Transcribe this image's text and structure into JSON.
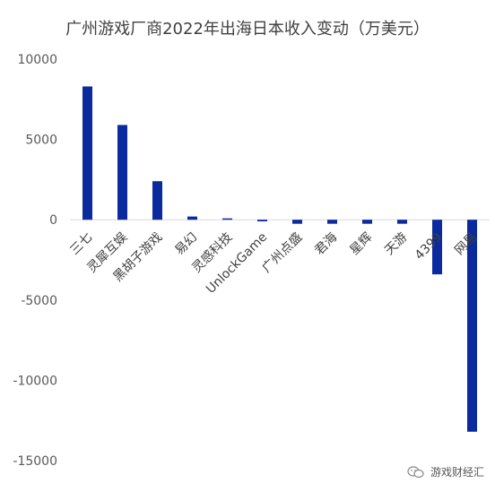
{
  "chart_data": {
    "type": "bar",
    "title": "广州游戏厂商2022年出海日本收入变动（万美元）",
    "xlabel": "",
    "ylabel": "",
    "categories": [
      "三七",
      "灵犀互娱",
      "黑胡子游戏",
      "易幻",
      "灵感科技",
      "UnlockGame",
      "广州点盛",
      "君海",
      "星辉",
      "天游",
      "4399",
      "网易"
    ],
    "values": [
      8300,
      5900,
      2400,
      200,
      50,
      -100,
      -250,
      -250,
      -250,
      -250,
      -3400,
      -13200
    ],
    "ylim": [
      -15000,
      10000
    ],
    "yticks": [
      10000,
      5000,
      0,
      -5000,
      -10000,
      -15000
    ],
    "ytick_labels": [
      "10000",
      "5000",
      "0",
      "-5000",
      "-10000",
      "-15000"
    ],
    "bar_color": "#0a2a9e",
    "grid": false,
    "legend": "none"
  },
  "watermark": {
    "text": "游戏财经汇",
    "icon": "wechat-icon"
  }
}
